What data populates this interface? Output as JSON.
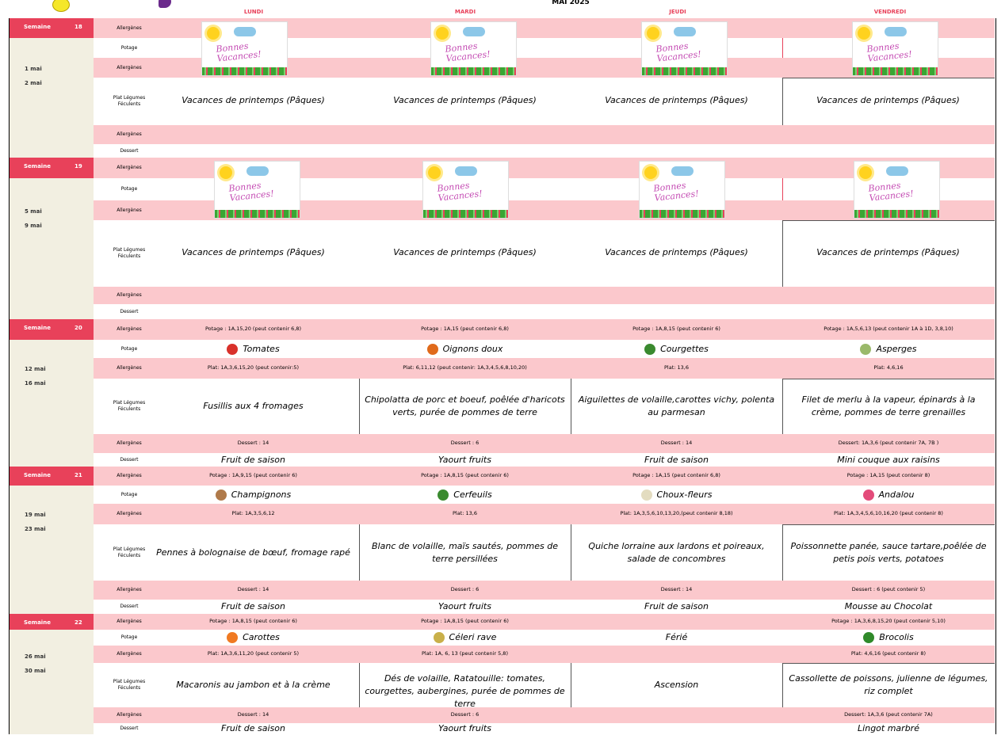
{
  "header": {
    "month": "MAI 2025",
    "days": [
      "LUNDI",
      "MARDI",
      "JEUDI",
      "VENDREDI"
    ]
  },
  "row_labels": {
    "allergenes": "Allergènes",
    "potage": "Potage",
    "plat_line1": "Plat Légumes",
    "plat_line2": "Féculents",
    "dessert": "Dessert"
  },
  "vacation_text": "Vacances de printemps (Pâques)",
  "vacation_image_text": "Bonnes Vacances!",
  "week_label": "Semaine",
  "weeks": [
    {
      "number": "18",
      "date_start": "1 mai",
      "date_end": "2 mai",
      "vacation": true
    },
    {
      "number": "19",
      "date_start": "5 mai",
      "date_end": "9 mai",
      "vacation": true
    },
    {
      "number": "20",
      "date_start": "12 mai",
      "date_end": "16 mai",
      "vacation": false,
      "days": [
        {
          "potage_allergens": "Potage : 1A,15,20 (peut contenir 6,8)",
          "potage": "Tomates",
          "veg_icon": "tomato-icon",
          "veg_color": "#d9312b",
          "plat_allergens": "Plat: 1A,3,6,15,20 (peut contenir:5)",
          "plat": "Fusillis aux 4 fromages",
          "dessert_allergens": "Dessert : 14",
          "dessert": "Fruit de saison"
        },
        {
          "potage_allergens": "Potage : 1A,15 (peut contenir 6,8)",
          "potage": "Oignons doux",
          "veg_icon": "onion-icon",
          "veg_color": "#e06a1b",
          "plat_allergens": "Plat: 6,11,12 (peut contenir: 1A,3,4,5,6,8,10,20)",
          "plat": "Chipolatta de porc et boeuf, poêlée d'haricots verts, purée de pommes de terre",
          "dessert_allergens": "Dessert : 6",
          "dessert": "Yaourt fruits"
        },
        {
          "potage_allergens": "Potage : 1A,8,15 (peut contenir 6)",
          "potage": "Courgettes",
          "veg_icon": "zucchini-icon",
          "veg_color": "#3a8a2f",
          "plat_allergens": "Plat: 13,6",
          "plat": "Aiguilettes de volaille,carottes vichy, polenta au parmesan",
          "dessert_allergens": "Dessert : 14",
          "dessert": "Fruit de saison"
        },
        {
          "potage_allergens": "Potage : 1A,5,6,13 (peut contenir 1A à 1D, 3,8,10)",
          "potage": "Asperges",
          "veg_icon": "asparagus-icon",
          "veg_color": "#9ab96a",
          "plat_allergens": "Plat: 4,6,16",
          "plat": "Filet de merlu à la vapeur, épinards à la crème, pommes de terre grenailles",
          "dessert_allergens": "Dessert: 1A,3,6 (peut contenir 7A, 7B )",
          "dessert": "Mini couque aux raisins"
        }
      ]
    },
    {
      "number": "21",
      "date_start": "19 mai",
      "date_end": "23 mai",
      "vacation": false,
      "days": [
        {
          "potage_allergens": "Potage : 1A,9,15 (peut contenir 6)",
          "potage": "Champignons",
          "veg_icon": "mushroom-icon",
          "veg_color": "#b07a4a",
          "plat_allergens": "Plat: 1A,3,5,6,12",
          "plat": "Pennes à bolognaise de  bœuf, fromage rapé",
          "dessert_allergens": "Dessert : 14",
          "dessert": "Fruit de saison"
        },
        {
          "potage_allergens": "Potage : 1A,8,15 (peut contenir 6)",
          "potage": "Cerfeuils",
          "veg_icon": "chervil-icon",
          "veg_color": "#3a8a2f",
          "plat_allergens": "Plat: 13,6",
          "plat": "Blanc de volaille, maïs sautés, pommes de terre persillées",
          "dessert_allergens": "Dessert : 6",
          "dessert": "Yaourt fruits"
        },
        {
          "potage_allergens": "Potage : 1A,15 (peut contenir 6,8)",
          "potage": "Choux-fleurs",
          "veg_icon": "cauliflower-icon",
          "veg_color": "#e3dcc0",
          "plat_allergens": "Plat: 1A,3,5,6,10,13,20,(peut contenir 8,18)",
          "plat": "Quiche lorraine aux lardons et poireaux, salade de concombres",
          "dessert_allergens": "Dessert : 14",
          "dessert": "Fruit de saison"
        },
        {
          "potage_allergens": "Potage : 1A,15 (peut contenir 8)",
          "potage": "Andalou",
          "veg_icon": "andalou-icon",
          "veg_color": "#e34b7a",
          "plat_allergens": "Plat: 1A,3,4,5,6,10,16,20 (peut contenir 8)",
          "plat": "Poissonnette panée, sauce tartare,poêlée de petis pois verts, potatoes",
          "dessert_allergens": "Dessert : 6 (peut contenir 5)",
          "dessert": "Mousse au Chocolat"
        }
      ]
    },
    {
      "number": "22",
      "date_start": "26 mai",
      "date_end": "30 mai",
      "vacation": false,
      "days": [
        {
          "potage_allergens": "Potage : 1A,8,15 (peut contenir 6)",
          "potage": "Carottes",
          "veg_icon": "carrot-icon",
          "veg_color": "#f07a22",
          "plat_allergens": "Plat: 1A,3,6,11,20 (peut contenir 5)",
          "plat": "Macaronis au jambon et à la crème",
          "dessert_allergens": "Dessert : 14",
          "dessert": "Fruit de saison"
        },
        {
          "potage_allergens": "Potage : 1A,8,15 (peut contenir 6)",
          "potage": "Céleri rave",
          "veg_icon": "celeriac-icon",
          "veg_color": "#c9b04a",
          "plat_allergens": "Plat: 1A, 6, 13 (peut contenir 5,8)",
          "plat": "Dés de volaille, Ratatouille: tomates, courgettes, aubergines, purée de pommes de terre",
          "dessert_allergens": "Dessert : 6",
          "dessert": "Yaourt fruits"
        },
        {
          "potage_allergens": "",
          "potage": "Férié",
          "veg_icon": "",
          "veg_color": "",
          "plat_allergens": "",
          "plat": "Ascension",
          "dessert_allergens": "",
          "dessert": ""
        },
        {
          "potage_allergens": "Potage : 1A,3,6,8,15,20 (peut contenir 5,10)",
          "potage": "Brocolis",
          "veg_icon": "broccoli-icon",
          "veg_color": "#2f8a2a",
          "plat_allergens": "Plat: 4,6,16 (peut contenir  8)",
          "plat": "Cassollette de poissons, julienne de légumes, riz complet",
          "dessert_allergens": "Dessert: 1A,3,6 (peut contenir 7A)",
          "dessert": "Lingot marbré"
        }
      ]
    }
  ]
}
